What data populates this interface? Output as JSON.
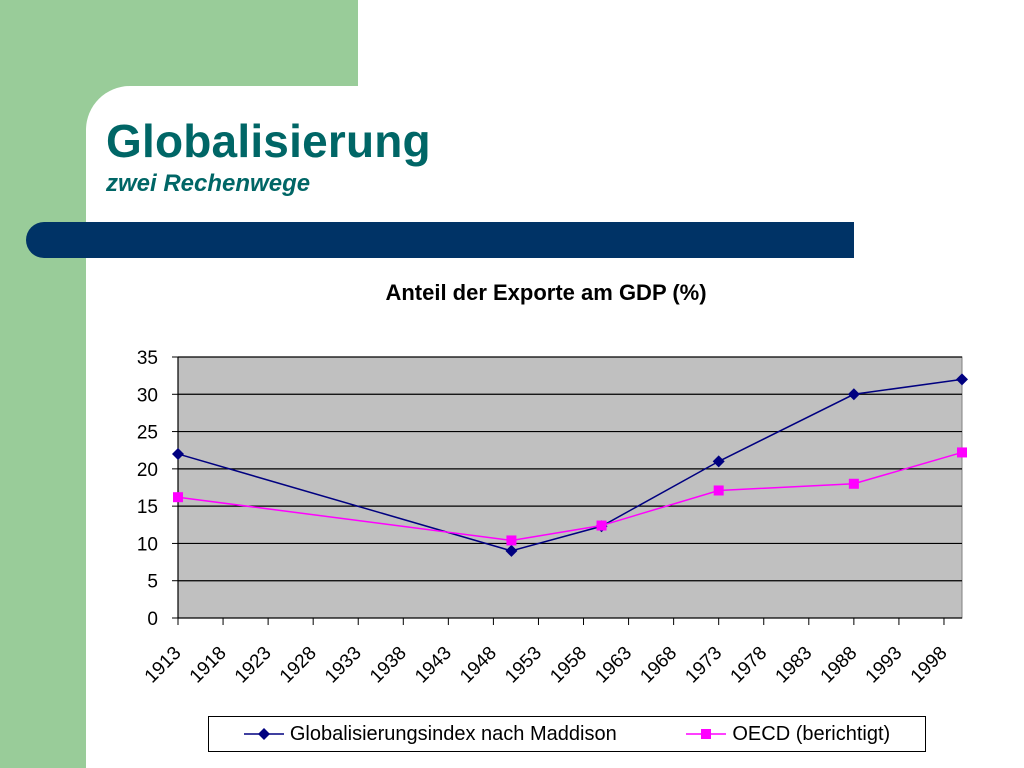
{
  "slide": {
    "title": "Globalisierung",
    "subtitle": "zwei Rechenwege"
  },
  "colors": {
    "green_band": "#99cc99",
    "title_teal": "#006666",
    "blue_bar": "#003366",
    "plot_bg": "#c0c0c0",
    "maddison": "#000080",
    "oecd": "#ff00ff"
  },
  "chart_data": {
    "type": "line",
    "title": "Anteil der Exporte am GDP (%)",
    "xlabel": "",
    "ylabel": "",
    "x_ticks": [
      "1913",
      "1918",
      "1923",
      "1928",
      "1933",
      "1938",
      "1943",
      "1948",
      "1953",
      "1958",
      "1963",
      "1968",
      "1973",
      "1978",
      "1983",
      "1988",
      "1993",
      "1998"
    ],
    "xlim": [
      1913,
      2000
    ],
    "ylim": [
      0,
      35
    ],
    "y_ticks": [
      0,
      5,
      10,
      15,
      20,
      25,
      30,
      35
    ],
    "grid": true,
    "legend_position": "bottom",
    "series": [
      {
        "name": "Globalisierungsindex nach Maddison",
        "marker": "diamond",
        "color": "#000080",
        "points": [
          [
            1913,
            22
          ],
          [
            1950,
            9
          ],
          [
            1960,
            12.3
          ],
          [
            1973,
            21
          ],
          [
            1988,
            30
          ],
          [
            2000,
            32
          ]
        ]
      },
      {
        "name": "OECD (berichtigt)",
        "marker": "square",
        "color": "#ff00ff",
        "points": [
          [
            1913,
            16.2
          ],
          [
            1950,
            10.4
          ],
          [
            1960,
            12.4
          ],
          [
            1973,
            17.1
          ],
          [
            1988,
            18
          ],
          [
            2000,
            22.2
          ]
        ]
      }
    ]
  }
}
